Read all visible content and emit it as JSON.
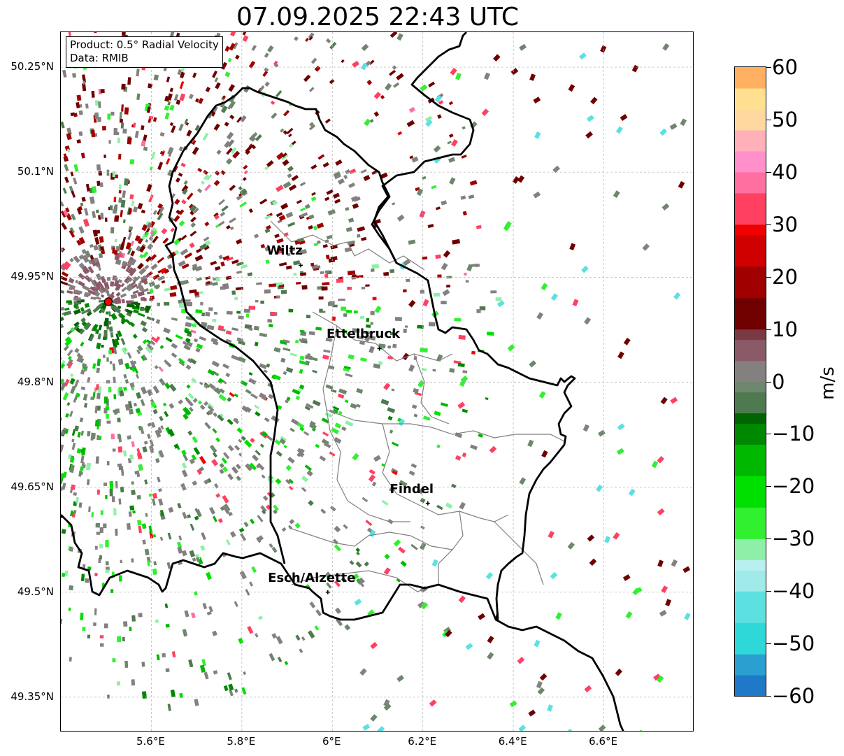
{
  "title": "07.09.2025 22:43 UTC",
  "info": {
    "product": "Product: 0.5° Radial Velocity",
    "source": "Data: RMIB"
  },
  "lat_labels": [
    "50.25°N",
    "50.1°N",
    "49.95°N",
    "49.8°N",
    "49.65°N",
    "49.5°N",
    "49.35°N"
  ],
  "lat_values": [
    50.25,
    50.1,
    49.95,
    49.8,
    49.65,
    49.5,
    49.35
  ],
  "lon_labels": [
    "5.6°E",
    "5.8°E",
    "6°E",
    "6.2°E",
    "6.4°E",
    "6.6°E"
  ],
  "lon_values": [
    5.6,
    5.8,
    6.0,
    6.2,
    6.4,
    6.6
  ],
  "extent": {
    "lon_min": 5.4,
    "lon_max": 6.8,
    "lat_min": 49.3,
    "lat_max": 50.3
  },
  "radar_site": {
    "lon": 5.505,
    "lat": 49.915
  },
  "cities": [
    {
      "name": "Wiltz",
      "lon": 5.93,
      "lat": 49.967
    },
    {
      "name": "Ettelbruck",
      "lon": 6.104,
      "lat": 49.848
    },
    {
      "name": "Findel",
      "lon": 6.211,
      "lat": 49.627
    },
    {
      "name": "Esch/Alzette",
      "lon": 5.99,
      "lat": 49.5
    }
  ],
  "colorbar": {
    "label": "m/s",
    "min": -60,
    "max": 60,
    "ticks": [
      "60",
      "50",
      "40",
      "30",
      "20",
      "10",
      "0",
      "−10",
      "−20",
      "−30",
      "−40",
      "−50",
      "−60"
    ],
    "tick_values": [
      60,
      50,
      40,
      30,
      20,
      10,
      0,
      -10,
      -20,
      -30,
      -40,
      -50,
      -60
    ],
    "stops": [
      {
        "v": -60,
        "c": "#1f78c8"
      },
      {
        "v": -56,
        "c": "#2aa0d0"
      },
      {
        "v": -52,
        "c": "#2ed8d8"
      },
      {
        "v": -46,
        "c": "#5ce0e0"
      },
      {
        "v": -40,
        "c": "#a0eaea"
      },
      {
        "v": -36,
        "c": "#b8f0f0"
      },
      {
        "v": -34,
        "c": "#8ef0a8"
      },
      {
        "v": -30,
        "c": "#30f030"
      },
      {
        "v": -24,
        "c": "#00e000"
      },
      {
        "v": -18,
        "c": "#00b800"
      },
      {
        "v": -12,
        "c": "#008800"
      },
      {
        "v": -8,
        "c": "#006400"
      },
      {
        "v": -6,
        "c": "#4f7a4f"
      },
      {
        "v": -2,
        "c": "#6e866e"
      },
      {
        "v": 0,
        "c": "#858080"
      },
      {
        "v": 4,
        "c": "#8a5a68"
      },
      {
        "v": 8,
        "c": "#7a3a44"
      },
      {
        "v": 10,
        "c": "#700000"
      },
      {
        "v": 16,
        "c": "#a00000"
      },
      {
        "v": 22,
        "c": "#d00000"
      },
      {
        "v": 28,
        "c": "#f00000"
      },
      {
        "v": 30,
        "c": "#ff4060"
      },
      {
        "v": 36,
        "c": "#ff70a0"
      },
      {
        "v": 40,
        "c": "#ff90cc"
      },
      {
        "v": 44,
        "c": "#ffb0b8"
      },
      {
        "v": 48,
        "c": "#ffd8a0"
      },
      {
        "v": 52,
        "c": "#ffe090"
      },
      {
        "v": 56,
        "c": "#ffb060"
      },
      {
        "v": 60,
        "c": "#ff9850"
      }
    ]
  },
  "colors": {
    "border": "#000000",
    "canton_lines": "#808080",
    "grid": "#b0b0b0",
    "radar_marker": "#ff0000"
  }
}
